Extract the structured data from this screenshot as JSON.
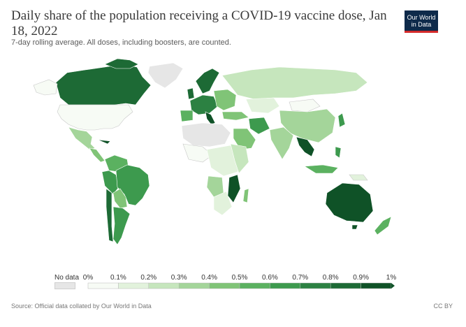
{
  "header": {
    "title": "Daily share of the population receiving a COVID-19 vaccine dose, Jan 18, 2022",
    "subtitle": "7-day rolling average. All doses, including boosters, are counted."
  },
  "logo": {
    "line1": "Our World",
    "line2": "in Data",
    "background": "#0e2a4a",
    "accent": "#d42b2b"
  },
  "legend": {
    "no_data_label": "No data",
    "no_data_color": "#e6e6e6",
    "ticks": [
      "0%",
      "0.1%",
      "0.2%",
      "0.3%",
      "0.4%",
      "0.5%",
      "0.6%",
      "0.7%",
      "0.8%",
      "0.9%",
      "1%"
    ],
    "colors": [
      "#f7fbf5",
      "#e2f2dc",
      "#c6e6bd",
      "#a4d59a",
      "#80c477",
      "#5bb160",
      "#3d9a4e",
      "#2c8142",
      "#1d6a35",
      "#0f5227"
    ]
  },
  "map_regions": [
    {
      "name": "Canada",
      "share_bin": 8
    },
    {
      "name": "United States",
      "share_bin": 0
    },
    {
      "name": "Mexico",
      "share_bin": 4
    },
    {
      "name": "Greenland",
      "share_bin": -1
    },
    {
      "name": "Brazil",
      "share_bin": 6
    },
    {
      "name": "Argentina",
      "share_bin": 6
    },
    {
      "name": "Chile",
      "share_bin": 8
    },
    {
      "name": "Russia",
      "share_bin": 2
    },
    {
      "name": "China",
      "share_bin": 3
    },
    {
      "name": "India",
      "share_bin": 3
    },
    {
      "name": "Australia",
      "share_bin": 9
    },
    {
      "name": "New Zealand",
      "share_bin": 6
    },
    {
      "name": "Mozambique",
      "share_bin": 9
    },
    {
      "name": "Kazakhstan",
      "share_bin": 1
    },
    {
      "name": "Mongolia",
      "share_bin": 0
    },
    {
      "name": "Vietnam",
      "share_bin": 9
    }
  ],
  "footer": {
    "source": "Source: Official data collated by Our World in Data",
    "license": "CC BY"
  }
}
